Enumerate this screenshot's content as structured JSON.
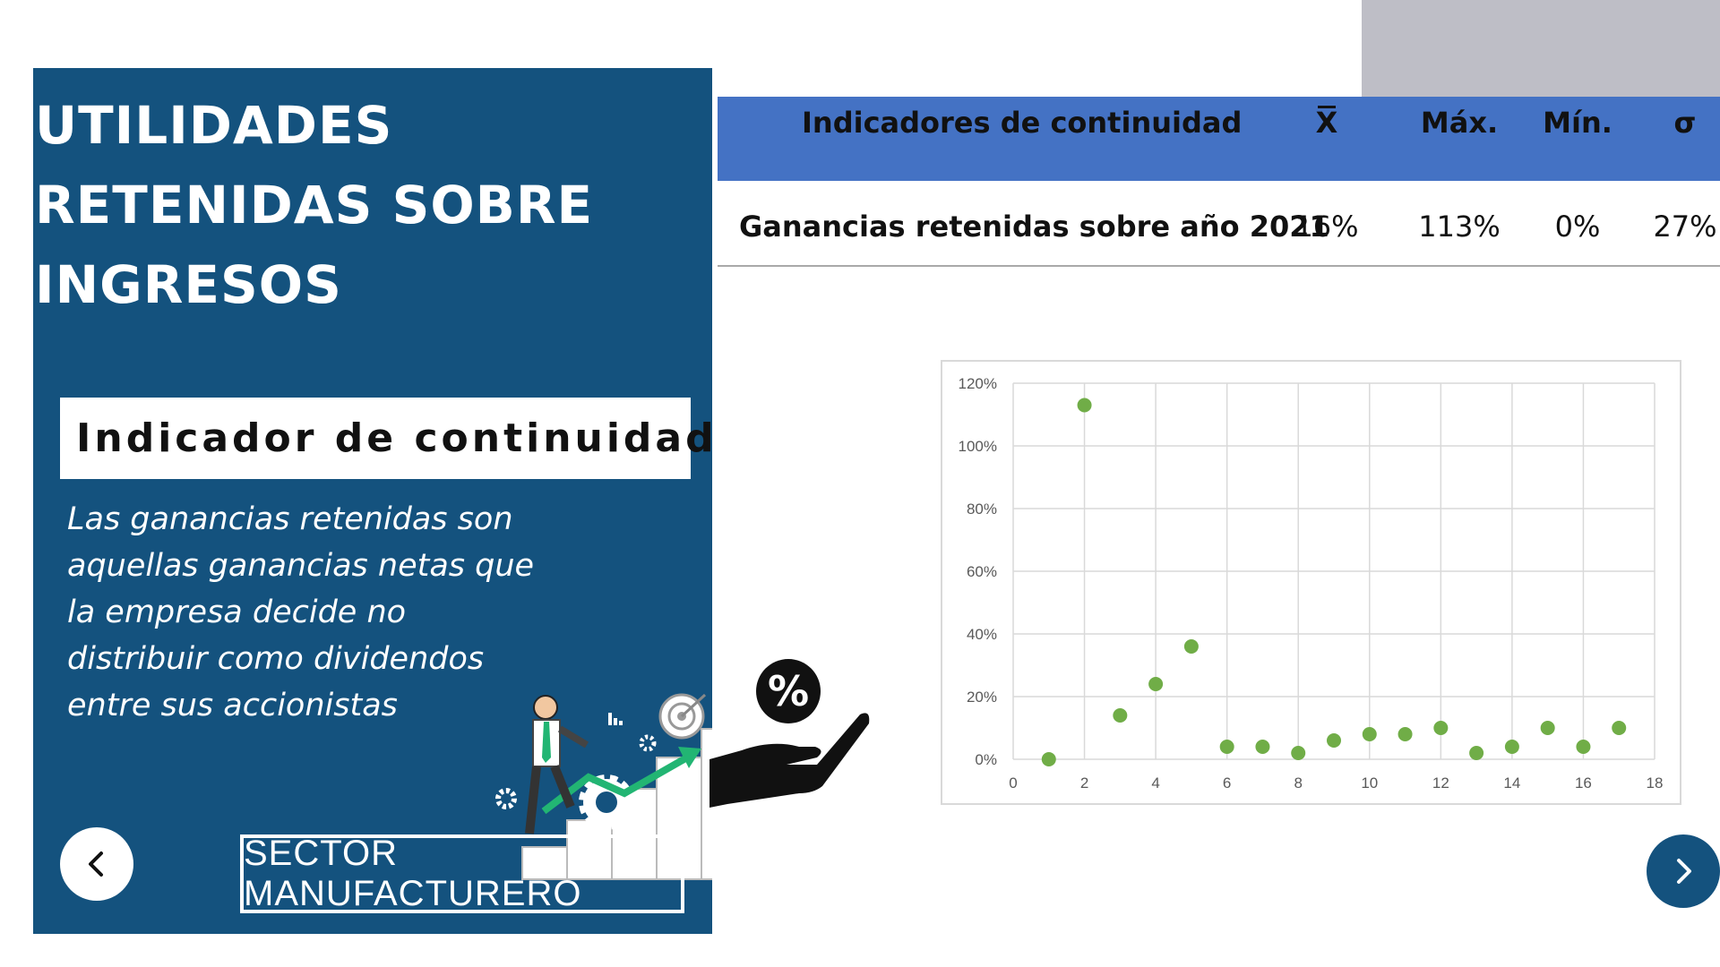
{
  "panel": {
    "title": "Utilidades retenidas sobre ingresos",
    "subtitle": "Indicador de continuidad",
    "description": "Las ganancias retenidas son aquellas ganancias netas que la empresa decide no distribuir como dividendos entre sus accionistas",
    "sector_button": "SECTOR MANUFACTURERO",
    "prev_icon": "chevron-left-icon",
    "background_color": "#14527e"
  },
  "table": {
    "headers": {
      "label": "Indicadores de continuidad",
      "mean": "X",
      "max": "Máx.",
      "min": "Mín.",
      "sd": "σ"
    },
    "row": {
      "label": "Ganancias retenidas sobre año 2021",
      "mean": "16%",
      "max": "113%",
      "min": "0%",
      "sd": "27%"
    },
    "header_color": "#4472c4"
  },
  "chart_data": {
    "type": "scatter",
    "x": [
      1,
      2,
      3,
      4,
      5,
      6,
      7,
      8,
      9,
      10,
      11,
      12,
      13,
      14,
      15,
      16,
      17
    ],
    "y": [
      0.0,
      1.13,
      0.14,
      0.24,
      0.36,
      0.04,
      0.04,
      0.02,
      0.06,
      0.08,
      0.08,
      0.1,
      0.02,
      0.04,
      0.1,
      0.04,
      0.1
    ],
    "xlim": [
      0,
      18
    ],
    "ylim": [
      0,
      1.2
    ],
    "x_ticks": [
      "0",
      "2",
      "4",
      "6",
      "8",
      "10",
      "12",
      "14",
      "16",
      "18"
    ],
    "y_ticks": [
      "0%",
      "20%",
      "40%",
      "60%",
      "80%",
      "100%",
      "120%"
    ],
    "grid": true,
    "marker_color": "#70ad47",
    "title": "",
    "xlabel": "",
    "ylabel": ""
  },
  "navigation": {
    "next_icon": "chevron-right-icon",
    "next_color": "#14527e"
  },
  "decorations": {
    "illustration_icon": "businessman-growth-icon",
    "hand_icon": "hand-percent-icon"
  }
}
